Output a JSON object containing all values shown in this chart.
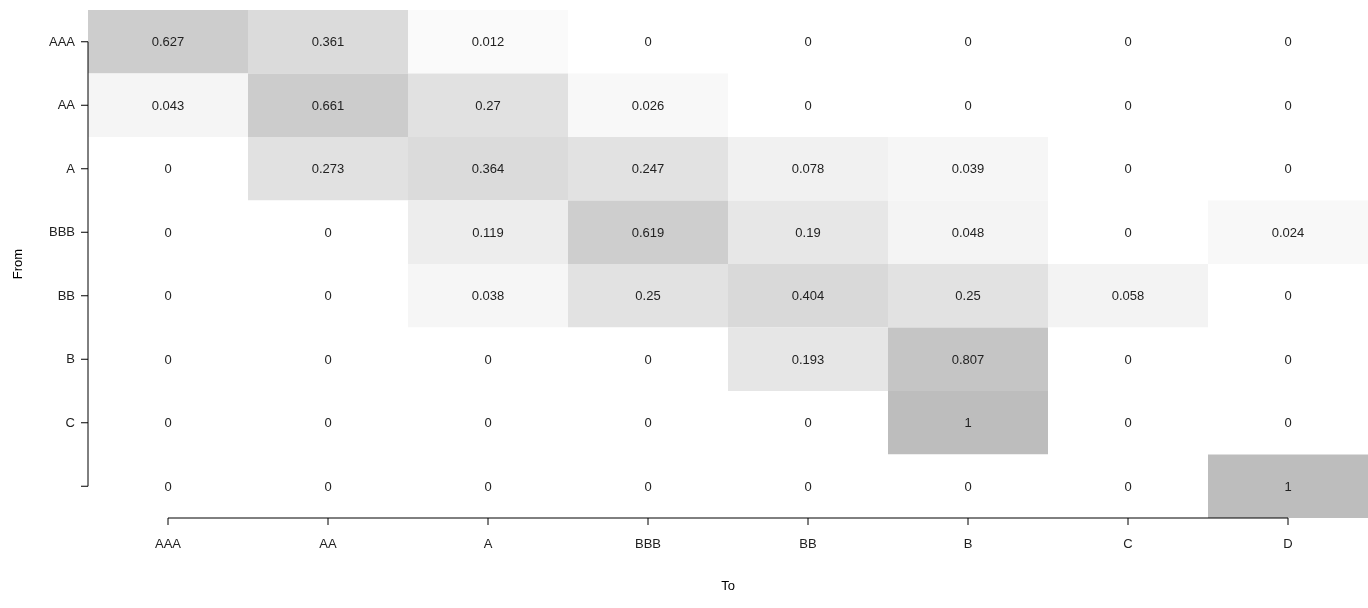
{
  "chart_data": {
    "type": "heatmap",
    "xlabel": "To",
    "ylabel": "From",
    "categories": [
      "AAA",
      "AA",
      "A",
      "BBB",
      "BB",
      "B",
      "C",
      "D"
    ],
    "y_categories": [
      "AAA",
      "AA",
      "A",
      "BBB",
      "BB",
      "B",
      "C",
      null
    ],
    "cells": [
      [
        0.627,
        0.361,
        0.012,
        0,
        0,
        0,
        0,
        0
      ],
      [
        0.043,
        0.661,
        0.27,
        0.026,
        0,
        0,
        0,
        0
      ],
      [
        0,
        0.273,
        0.364,
        0.247,
        0.078,
        0.039,
        0,
        0
      ],
      [
        0,
        0,
        0.119,
        0.619,
        0.19,
        0.048,
        0,
        0.024
      ],
      [
        0,
        0,
        0.038,
        0.25,
        0.404,
        0.25,
        0.058,
        0
      ],
      [
        0,
        0,
        0,
        0,
        0.193,
        0.807,
        0,
        0
      ],
      [
        0,
        0,
        0,
        0,
        0,
        1,
        0,
        0
      ],
      [
        0,
        0,
        0,
        0,
        0,
        0,
        0,
        1
      ]
    ],
    "data_labels": true
  }
}
